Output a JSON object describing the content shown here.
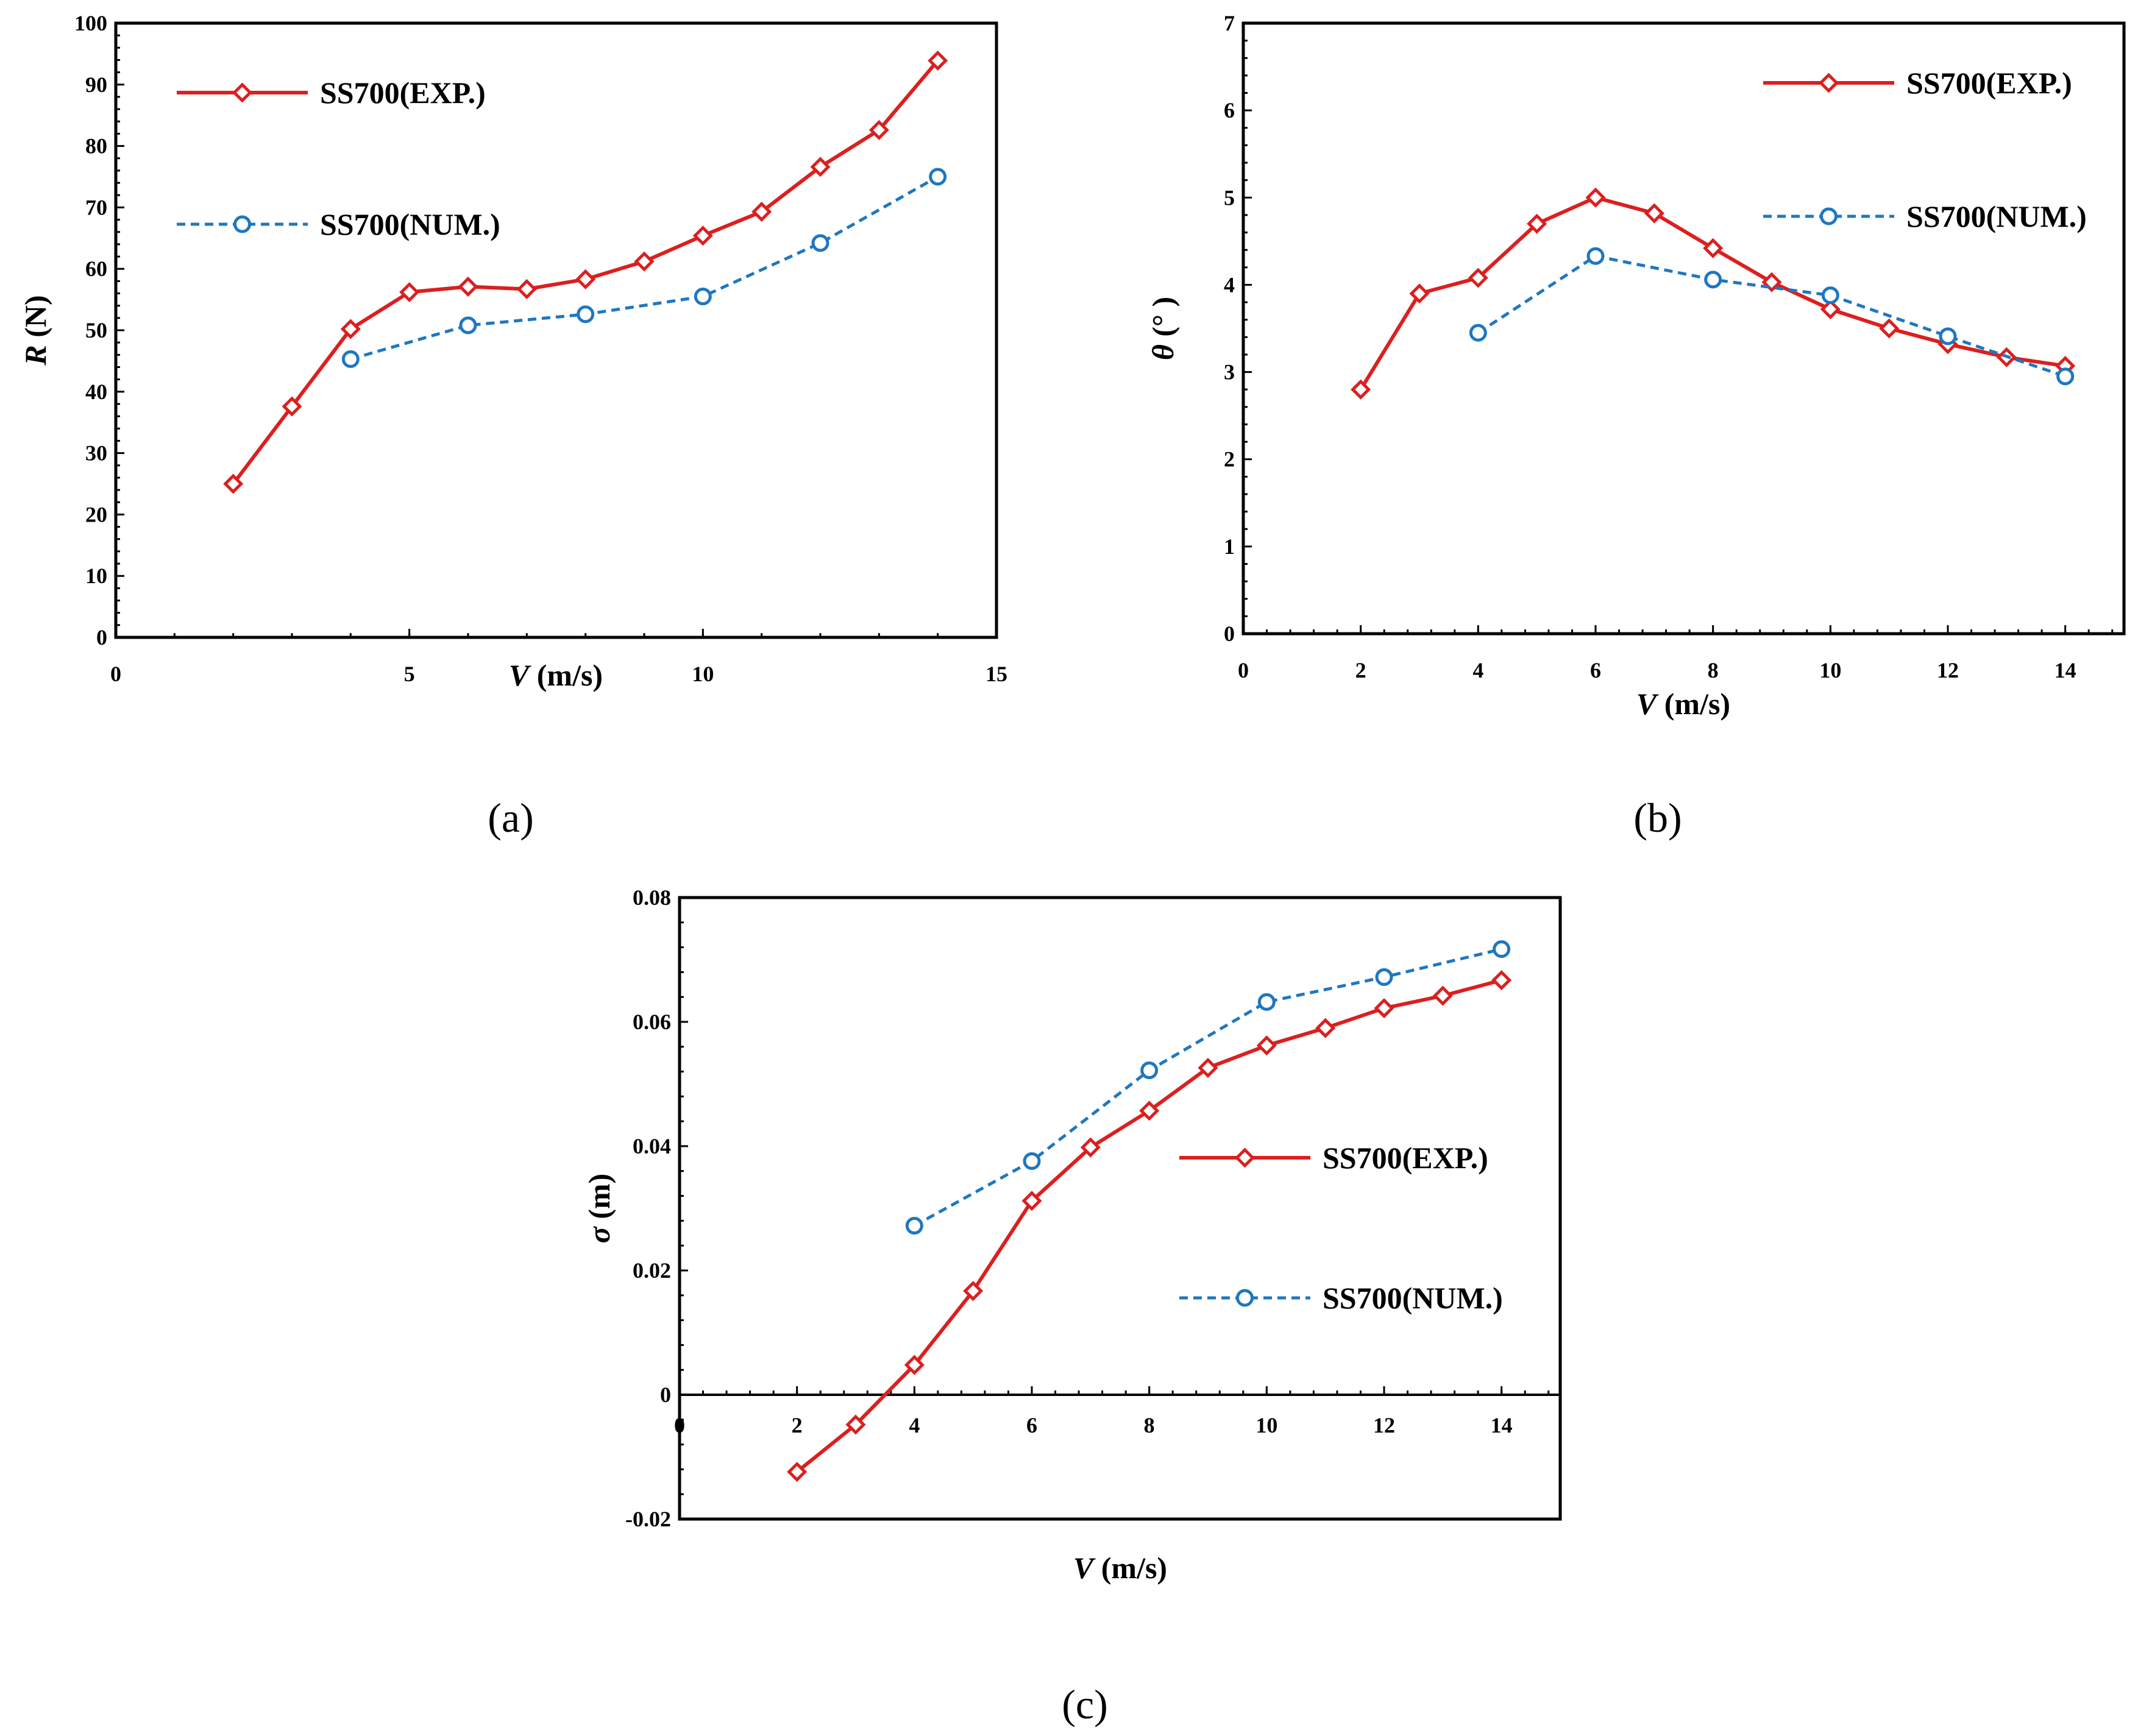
{
  "colors": {
    "exp": "#DC1F1F",
    "num": "#1F77C0"
  },
  "chart_data": [
    {
      "type": "line",
      "caption": "(a)",
      "xlabel_var": "V",
      "xlabel_unit": " (m/s)",
      "ylabel_var": "R",
      "ylabel_unit": " (N)",
      "xlim": [
        0,
        15
      ],
      "ylim": [
        0,
        100
      ],
      "xticks": [
        0,
        5,
        10,
        15
      ],
      "yticks": [
        0,
        10,
        20,
        30,
        40,
        50,
        60,
        70,
        80,
        90,
        100
      ],
      "xtick_labels": [
        "0",
        "5",
        "10",
        "15"
      ],
      "ytick_labels": [
        "0",
        "10",
        "20",
        "30",
        "40",
        "50",
        "60",
        "70",
        "80",
        "90",
        "100"
      ],
      "grid": false,
      "legend_position": "left",
      "series": [
        {
          "name": "SS700(EXP.)",
          "style": "solid",
          "marker": "diamond",
          "x": [
            2,
            3,
            4,
            5,
            6,
            7,
            8,
            9,
            10,
            11,
            12,
            13,
            14
          ],
          "y": [
            25,
            37.6,
            50.2,
            56.2,
            57.1,
            56.7,
            58.3,
            61.2,
            65.4,
            69.3,
            76.6,
            82.6,
            93.9
          ]
        },
        {
          "name": "SS700(NUM.)",
          "style": "dashed",
          "marker": "circle",
          "x": [
            4,
            6,
            8,
            10,
            12,
            14
          ],
          "y": [
            45.3,
            50.8,
            52.6,
            55.5,
            64.2,
            75
          ]
        }
      ]
    },
    {
      "type": "line",
      "caption": "(b)",
      "xlabel_var": "V",
      "xlabel_unit": " (m/s)",
      "ylabel_var": "θ",
      "ylabel_unit": " (°  )",
      "xlim": [
        0,
        15
      ],
      "ylim": [
        0,
        7
      ],
      "xticks": [
        0,
        2,
        4,
        6,
        8,
        10,
        12,
        14
      ],
      "yticks": [
        0,
        1,
        2,
        3,
        4,
        5,
        6,
        7
      ],
      "xtick_labels": [
        "0",
        "2",
        "4",
        "6",
        "8",
        "10",
        "12",
        "14"
      ],
      "ytick_labels": [
        "0",
        "1",
        "2",
        "3",
        "4",
        "5",
        "6",
        "7"
      ],
      "grid": false,
      "legend_position": "top-right",
      "series": [
        {
          "name": "SS700(EXP.)",
          "style": "solid",
          "marker": "diamond",
          "x": [
            2,
            3,
            4,
            5,
            6,
            7,
            8,
            9,
            10,
            11,
            12,
            13,
            14
          ],
          "y": [
            2.8,
            3.9,
            4.08,
            4.7,
            5.0,
            4.82,
            4.42,
            4.03,
            3.72,
            3.5,
            3.32,
            3.17,
            3.07
          ]
        },
        {
          "name": "SS700(NUM.)",
          "style": "dashed",
          "marker": "circle",
          "x": [
            4,
            6,
            8,
            10,
            12,
            14
          ],
          "y": [
            3.45,
            4.33,
            4.06,
            3.88,
            3.41,
            2.95
          ]
        }
      ]
    },
    {
      "type": "line",
      "caption": "(c)",
      "xlabel_var": "V",
      "xlabel_unit": " (m/s)",
      "ylabel_var": "σ",
      "ylabel_unit": " (m)",
      "xlim": [
        0,
        15
      ],
      "ylim": [
        -0.02,
        0.08
      ],
      "xticks": [
        0,
        2,
        4,
        6,
        8,
        10,
        12,
        14
      ],
      "yticks": [
        -0.02,
        0,
        0.02,
        0.04,
        0.06,
        0.08
      ],
      "xtick_labels": [
        "0",
        "2",
        "4",
        "6",
        "8",
        "10",
        "12",
        "14"
      ],
      "ytick_labels": [
        "-0.02",
        "0",
        "0.02",
        "0.04",
        "0.06",
        "0.08"
      ],
      "grid": false,
      "legend_position": "right",
      "series": [
        {
          "name": "SS700(EXP.)",
          "style": "solid",
          "marker": "diamond",
          "x": [
            2,
            3,
            4,
            5,
            6,
            7,
            8,
            9,
            10,
            11,
            12,
            13,
            14
          ],
          "y": [
            -0.0124,
            -0.0048,
            0.0048,
            0.0167,
            0.0312,
            0.0398,
            0.0457,
            0.0526,
            0.0562,
            0.059,
            0.0622,
            0.0642,
            0.0667
          ]
        },
        {
          "name": "SS700(NUM.)",
          "style": "dashed",
          "marker": "circle",
          "x": [
            4,
            6,
            8,
            10,
            12,
            14
          ],
          "y": [
            0.0272,
            0.0376,
            0.0522,
            0.0632,
            0.0672,
            0.0717
          ]
        }
      ]
    }
  ]
}
